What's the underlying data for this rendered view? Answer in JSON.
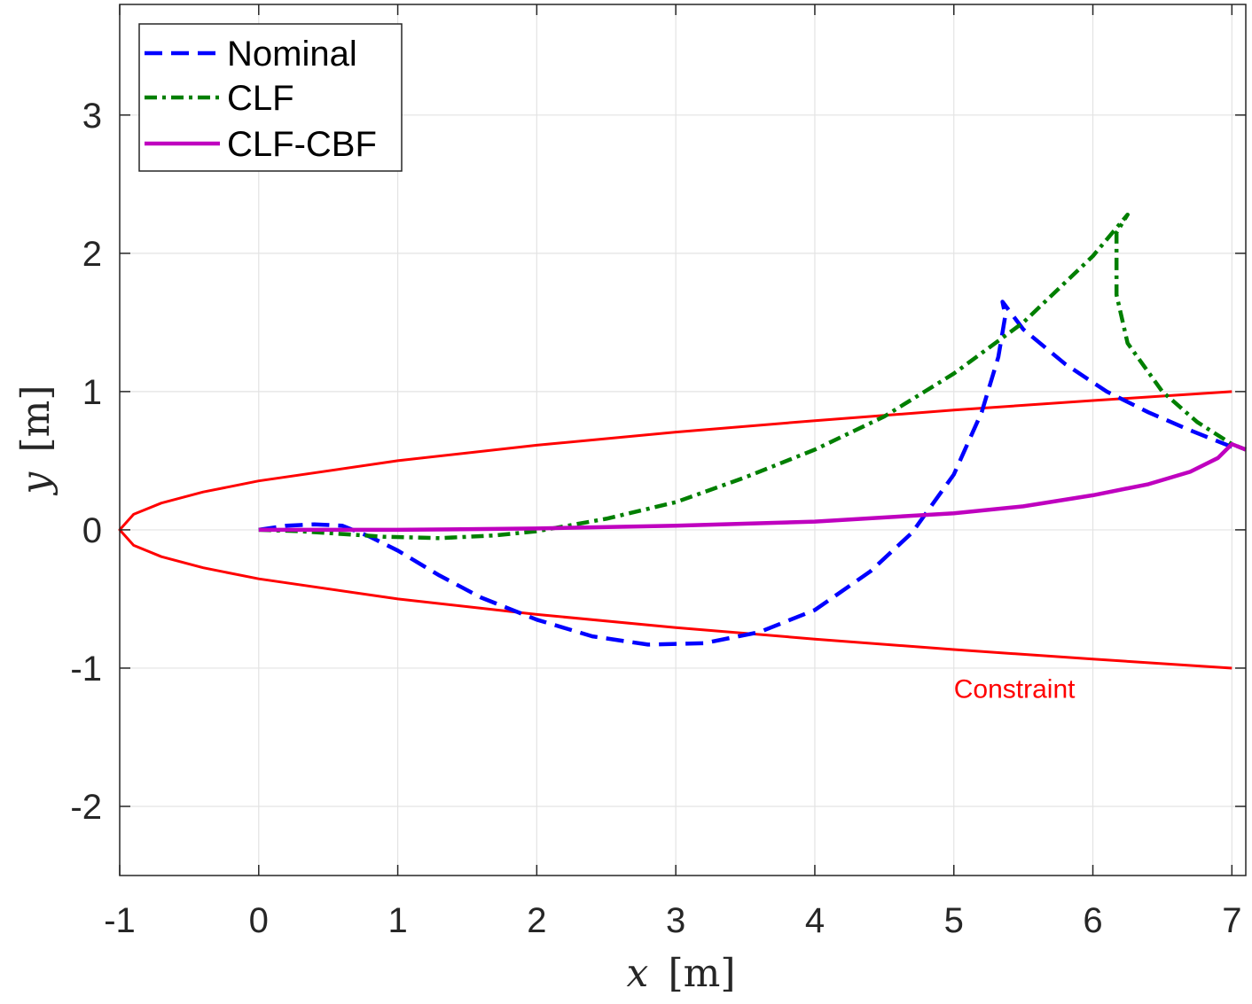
{
  "chart_data": {
    "type": "line",
    "xlabel": "x",
    "xlabel_unit": "[m]",
    "ylabel": "y",
    "ylabel_unit": "[m]",
    "xlim": [
      -1,
      7.1
    ],
    "ylim": [
      -2.5,
      3.8
    ],
    "xticks": [
      -1,
      0,
      1,
      2,
      3,
      4,
      5,
      6,
      7
    ],
    "xtick_labels": [
      "-1",
      "0",
      "1",
      "2",
      "3",
      "4",
      "5",
      "6",
      "7"
    ],
    "yticks": [
      -2,
      -1,
      0,
      1,
      2,
      3
    ],
    "ytick_labels": [
      "-2",
      "-1",
      "0",
      "1",
      "2",
      "3"
    ],
    "grid": true,
    "legend_position": "top-left",
    "series": [
      {
        "name": "Nominal",
        "color": "#0000ff",
        "style": "dashed",
        "x": [
          0,
          0.2,
          0.4,
          0.6,
          0.8,
          1.0,
          1.3,
          1.6,
          2.0,
          2.4,
          2.8,
          3.2,
          3.6,
          4.0,
          4.4,
          4.7,
          5.0,
          5.2,
          5.32,
          5.37,
          5.35,
          5.5,
          5.8,
          6.1,
          6.4,
          6.7,
          7.0
        ],
        "y": [
          0,
          0.03,
          0.04,
          0.03,
          -0.05,
          -0.15,
          -0.33,
          -0.49,
          -0.65,
          -0.77,
          -0.83,
          -0.82,
          -0.74,
          -0.58,
          -0.3,
          -0.02,
          0.4,
          0.85,
          1.25,
          1.55,
          1.65,
          1.45,
          1.2,
          1.0,
          0.85,
          0.72,
          0.6
        ]
      },
      {
        "name": "CLF",
        "color": "#007f00",
        "style": "dashdot",
        "x": [
          0,
          0.3,
          0.6,
          0.9,
          1.3,
          1.7,
          2.0,
          2.5,
          3.0,
          3.5,
          4.0,
          4.5,
          5.0,
          5.5,
          6.0,
          6.25,
          6.17,
          6.17,
          6.25,
          6.5,
          6.75,
          7.0,
          7.1
        ],
        "y": [
          0,
          -0.01,
          -0.03,
          -0.05,
          -0.06,
          -0.04,
          -0.01,
          0.08,
          0.2,
          0.38,
          0.58,
          0.82,
          1.13,
          1.5,
          1.98,
          2.28,
          2.15,
          1.7,
          1.35,
          1.0,
          0.78,
          0.62,
          0.58
        ]
      },
      {
        "name": "CLF-CBF",
        "color": "#bf00bf",
        "style": "solid",
        "x": [
          0,
          1,
          2,
          3,
          4,
          5,
          5.5,
          6,
          6.4,
          6.7,
          6.9,
          7.0,
          7.1
        ],
        "y": [
          0,
          0.0,
          0.01,
          0.03,
          0.06,
          0.12,
          0.17,
          0.25,
          0.33,
          0.42,
          0.52,
          0.62,
          0.58
        ]
      },
      {
        "name": "Constraint",
        "color": "#ff0000",
        "style": "solid",
        "x": [
          7,
          6,
          5,
          4,
          3,
          2,
          1,
          0,
          -0.4,
          -0.7,
          -0.9,
          -1.0,
          -0.9,
          -0.7,
          -0.4,
          0,
          1,
          2,
          3,
          4,
          5,
          6,
          7
        ],
        "y": [
          1.0,
          0.935,
          0.866,
          0.79,
          0.707,
          0.612,
          0.5,
          0.354,
          0.274,
          0.194,
          0.112,
          0,
          -0.112,
          -0.194,
          -0.274,
          -0.354,
          -0.5,
          -0.612,
          -0.707,
          -0.79,
          -0.866,
          -0.935,
          -1.0
        ]
      }
    ],
    "annotations": [
      {
        "text": "Constraint",
        "x": 5.0,
        "y": -1.15,
        "color": "#ff0000"
      }
    ]
  }
}
